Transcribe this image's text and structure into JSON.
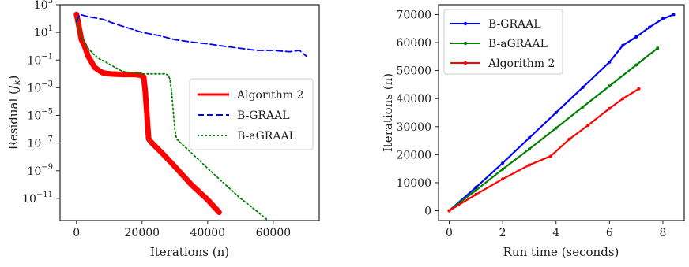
{
  "chart_data": [
    {
      "type": "line",
      "title": "",
      "xlabel": "Iterations (n)",
      "ylabel": "Residual (J_k)",
      "ylabel_main": "Residual (",
      "ylabel_var": "J",
      "ylabel_sub": "k",
      "ylabel_close": ")",
      "yscale": "log",
      "xlim": [
        -5000,
        74000
      ],
      "ylim_exp": [
        -12.6,
        3
      ],
      "xticks": [
        0,
        20000,
        40000,
        60000
      ],
      "xtick_labels": [
        "0",
        "20000",
        "40000",
        "60000"
      ],
      "yticks_exp": [
        3,
        1,
        -1,
        -3,
        -5,
        -7,
        -9,
        -11
      ],
      "ytick_base": "10",
      "ytick_exps": [
        "3",
        "1",
        "−1",
        "−3",
        "−5",
        "−7",
        "−9",
        "−11"
      ],
      "grid": false,
      "legend_position": "center-right",
      "series": [
        {
          "name": "Algorithm 2",
          "color": "#ff0000",
          "style": "solid",
          "x": [
            0,
            500,
            1500,
            2500,
            3500,
            4500,
            5500,
            6500,
            8000,
            10000,
            14000,
            18000,
            19500,
            20500,
            21000,
            21500,
            22000,
            23000,
            26000,
            30000,
            35000,
            40000,
            43500
          ],
          "y": [
            200,
            60,
            3,
            1,
            0.2,
            0.08,
            0.03,
            0.02,
            0.012,
            0.01,
            0.009,
            0.009,
            0.008,
            0.006,
            0.0005,
            1e-05,
            2e-07,
            1e-07,
            2e-08,
            2e-09,
            1e-10,
            8e-12,
            1e-12
          ]
        },
        {
          "name": "B-GRAAL",
          "color": "#0000ff",
          "style": "dashed",
          "x": [
            0,
            1000,
            3000,
            5000,
            8000,
            12000,
            16000,
            20000,
            25000,
            30000,
            35000,
            40000,
            45000,
            50000,
            55000,
            60000,
            65000,
            68000,
            70000
          ],
          "y": [
            60,
            200,
            150,
            120,
            90,
            40,
            20,
            10,
            6,
            3,
            2,
            1.5,
            1,
            0.7,
            0.5,
            0.5,
            0.4,
            0.5,
            0.2
          ]
        },
        {
          "name": "B-aGRAAL",
          "color": "#008000",
          "style": "dotted",
          "x": [
            0,
            500,
            1500,
            3000,
            5000,
            7000,
            9000,
            10000,
            14000,
            20000,
            25000,
            27000,
            28000,
            28500,
            29000,
            29500,
            30000,
            30500,
            35000,
            40000,
            45000,
            50000,
            55000,
            58000
          ],
          "y": [
            100,
            30,
            5,
            1,
            0.3,
            0.12,
            0.07,
            0.05,
            0.015,
            0.01,
            0.01,
            0.01,
            0.008,
            0.004,
            0.0005,
            2e-05,
            1e-06,
            2e-07,
            2e-08,
            1.5e-09,
            1.2e-10,
            1e-11,
            1.2e-12,
            3e-13
          ]
        }
      ]
    },
    {
      "type": "line",
      "title": "",
      "xlabel": "Run time (seconds)",
      "ylabel": "Iterations (n)",
      "xlim": [
        -0.4,
        8.8
      ],
      "ylim": [
        -3500,
        73500
      ],
      "xticks": [
        0,
        2,
        4,
        6,
        8
      ],
      "xtick_labels": [
        "0",
        "2",
        "4",
        "6",
        "8"
      ],
      "yticks": [
        0,
        10000,
        20000,
        30000,
        40000,
        50000,
        60000,
        70000
      ],
      "ytick_labels": [
        "0",
        "10000",
        "20000",
        "30000",
        "40000",
        "50000",
        "60000",
        "70000"
      ],
      "grid": false,
      "legend_position": "top-left",
      "series": [
        {
          "name": "B-GRAAL",
          "color": "#0000ff",
          "style": "solid-marker",
          "x": [
            0,
            1,
            2,
            3,
            4,
            5,
            6,
            6.5,
            7,
            7.5,
            8,
            8.4
          ],
          "y": [
            0,
            8300,
            17000,
            26000,
            35000,
            44000,
            53000,
            59000,
            62000,
            65500,
            68500,
            70000
          ]
        },
        {
          "name": "B-aGRAAL",
          "color": "#008000",
          "style": "solid-marker",
          "x": [
            0,
            1,
            2,
            3,
            4,
            5,
            6,
            7,
            7.8
          ],
          "y": [
            0,
            7300,
            14800,
            22000,
            29500,
            37000,
            44500,
            52000,
            58000
          ]
        },
        {
          "name": "Algorithm 2",
          "color": "#ff0000",
          "style": "solid-marker",
          "x": [
            0,
            1,
            2,
            3,
            3.8,
            4.5,
            5.2,
            6,
            6.5,
            7.1
          ],
          "y": [
            0,
            5800,
            11300,
            16300,
            19500,
            25500,
            30500,
            36500,
            40000,
            43500
          ]
        }
      ]
    }
  ]
}
